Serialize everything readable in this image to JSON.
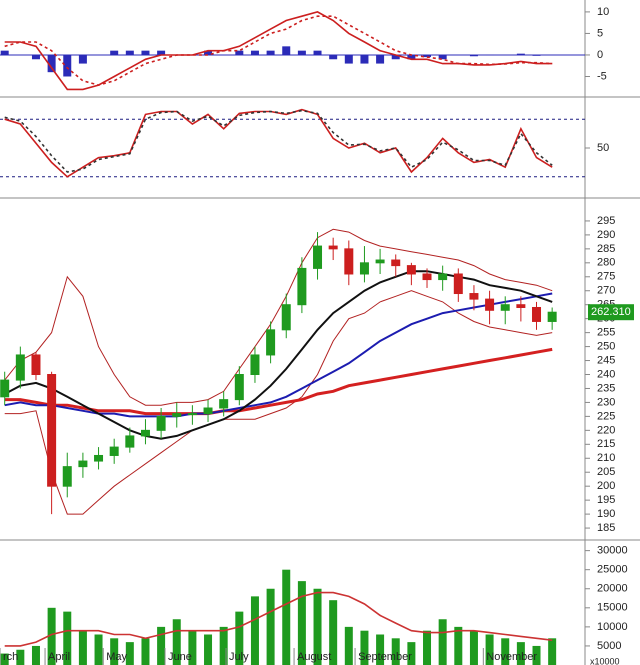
{
  "chart_data": [
    {
      "type": "macd",
      "ylim": [
        -9.3,
        12.3
      ],
      "yticks": [
        10,
        5,
        0,
        -5
      ],
      "histogram": {
        "color": "#2b2bb8",
        "values": [
          1,
          0,
          -1,
          -4,
          -5,
          -2,
          0,
          1,
          1,
          1,
          1,
          0,
          0,
          1,
          0,
          1,
          1,
          1,
          2,
          1,
          1,
          -1,
          -2,
          -2,
          -2,
          -1,
          -1,
          -0.5,
          -1,
          0,
          -0.3,
          -0.1,
          0.1,
          0.3,
          -0.2,
          0
        ]
      },
      "series": [
        {
          "color": "#cc1f1f",
          "values": [
            3,
            3,
            2,
            -3,
            -8,
            -8,
            -7,
            -5,
            -3,
            -1,
            0,
            0,
            0,
            1,
            1,
            2,
            4,
            6,
            8,
            9,
            10,
            8,
            5,
            3,
            1,
            0,
            -1,
            -1,
            -2,
            -2,
            -2.3,
            -2.3,
            -2,
            -1.5,
            -2,
            -2
          ]
        },
        {
          "color": "#cc1f1f",
          "dashed": true,
          "values": [
            2,
            3,
            3,
            1,
            -3,
            -6,
            -7,
            -6,
            -4,
            -2,
            -1,
            0,
            0,
            0,
            1,
            1,
            3,
            5,
            6,
            8,
            9,
            9,
            7,
            5,
            3,
            1,
            0,
            -0.5,
            -1,
            -2,
            -2,
            -2.2,
            -2.1,
            -1.8,
            -1.8,
            -2
          ]
        }
      ]
    },
    {
      "type": "stochastic",
      "ylim": [
        0,
        100
      ],
      "yticks": [
        50
      ],
      "levels": [
        80,
        20
      ],
      "series": [
        {
          "color": "#cc1f1f",
          "values": [
            80,
            75,
            55,
            35,
            20,
            30,
            40,
            42,
            45,
            85,
            88,
            88,
            75,
            85,
            70,
            86,
            88,
            88,
            85,
            90,
            85,
            60,
            50,
            55,
            45,
            50,
            25,
            40,
            60,
            45,
            35,
            38,
            30,
            70,
            40,
            30
          ]
        },
        {
          "color": "#333333",
          "dashed": true,
          "values": [
            82,
            78,
            62,
            42,
            25,
            28,
            38,
            41,
            44,
            80,
            87,
            88,
            78,
            83,
            73,
            84,
            87,
            88,
            86,
            89,
            86,
            66,
            53,
            54,
            47,
            50,
            30,
            38,
            56,
            48,
            37,
            37,
            32,
            65,
            45,
            32
          ]
        }
      ]
    },
    {
      "type": "candlestick",
      "ylim": [
        181.8,
        302.5
      ],
      "yticks": [
        185,
        190,
        195,
        200,
        205,
        210,
        215,
        220,
        225,
        230,
        235,
        240,
        245,
        250,
        255,
        260,
        265,
        270,
        275,
        280,
        285,
        290,
        295
      ],
      "up_color": "#1f9a1f",
      "down_color": "#cc1f1f",
      "open": [
        232,
        238,
        247,
        240,
        200,
        207,
        209,
        211,
        214,
        218,
        220,
        225,
        226,
        226,
        228,
        231,
        240,
        247,
        256,
        265,
        278,
        286,
        285,
        276,
        280,
        281,
        279,
        276,
        274,
        276,
        269,
        267,
        263,
        265,
        264,
        259
      ],
      "high": [
        241,
        250,
        248,
        241,
        212,
        212,
        214,
        217,
        221,
        224,
        228,
        230,
        229,
        231,
        234,
        243,
        250,
        259,
        269,
        282,
        291,
        289,
        288,
        286,
        285,
        283,
        280,
        278,
        279,
        278,
        272,
        270,
        268,
        268,
        266,
        264
      ],
      "low": [
        229,
        235,
        238,
        190,
        196,
        203,
        206,
        208,
        212,
        215,
        217,
        221,
        222,
        223,
        225,
        229,
        237,
        244,
        253,
        262,
        274,
        281,
        272,
        273,
        276,
        275,
        272,
        271,
        270,
        266,
        263,
        258,
        258,
        259,
        256,
        256
      ],
      "close": [
        238,
        247,
        240,
        200,
        207,
        209,
        211,
        214,
        218,
        220,
        225,
        226,
        226,
        228,
        231,
        240,
        247,
        256,
        265,
        278,
        286,
        285,
        276,
        280,
        281,
        279,
        276,
        274,
        276,
        269,
        267,
        263,
        265,
        264,
        259,
        262.31
      ],
      "last_price": {
        "value": 262.31,
        "label": "262.310"
      },
      "series": [
        {
          "color": "#b22222",
          "width": 1,
          "values": [
            238,
            245,
            248,
            255,
            275,
            268,
            250,
            240,
            232,
            229,
            229,
            230,
            230,
            231,
            234,
            242,
            250,
            258,
            268,
            280,
            289,
            292,
            291,
            288,
            286,
            285,
            284,
            283,
            282,
            281,
            279,
            276,
            274,
            273,
            272,
            270
          ]
        },
        {
          "color": "#b22222",
          "width": 1,
          "values": [
            226,
            226,
            227,
            205,
            190,
            190,
            195,
            200,
            204,
            208,
            212,
            216,
            220,
            222,
            224,
            224,
            224,
            226,
            228,
            232,
            240,
            252,
            260,
            262,
            266,
            268,
            270,
            268,
            266,
            262,
            259,
            257,
            256,
            255,
            254,
            255
          ]
        },
        {
          "color": "#d42020",
          "width": 3,
          "values": [
            231,
            231,
            230,
            229,
            229,
            228,
            227,
            227,
            227,
            226,
            226,
            226,
            226,
            226,
            227,
            227,
            228,
            229,
            230,
            231,
            233,
            234,
            236,
            237,
            238,
            239,
            240,
            241,
            242,
            243,
            244,
            245,
            246,
            247,
            248,
            249
          ]
        },
        {
          "color": "#1c1cb0",
          "width": 2,
          "values": [
            229,
            230,
            229,
            229,
            228,
            227,
            226,
            226,
            225,
            225,
            225,
            225,
            226,
            226,
            227,
            228,
            229,
            230,
            232,
            235,
            238,
            241,
            244,
            248,
            252,
            255,
            258,
            260,
            262,
            263,
            264,
            265,
            266,
            267,
            268,
            269
          ]
        },
        {
          "color": "#111111",
          "width": 2,
          "values": [
            233,
            236,
            237,
            235,
            232,
            229,
            226,
            223,
            220,
            218,
            217,
            218,
            220,
            222,
            224,
            227,
            231,
            236,
            242,
            249,
            256,
            262,
            266,
            270,
            273,
            275,
            277,
            277,
            276,
            275,
            274,
            272,
            271,
            270,
            268,
            266
          ]
        }
      ]
    },
    {
      "type": "volume",
      "ylim": [
        0,
        32000
      ],
      "yticks": [
        5000,
        10000,
        15000,
        20000,
        25000,
        30000
      ],
      "unit_label": "x10000",
      "color": "#1f9a1f",
      "values": [
        3000,
        4000,
        5000,
        15000,
        14000,
        9000,
        8000,
        7000,
        6000,
        7000,
        10000,
        12000,
        9000,
        8000,
        10000,
        14000,
        18000,
        20000,
        25000,
        22000,
        20000,
        17000,
        10000,
        9000,
        8000,
        7000,
        6000,
        9000,
        12000,
        10000,
        9000,
        8000,
        7000,
        6000,
        5000,
        7000
      ],
      "series": [
        {
          "color": "#cc3333",
          "values": [
            5000,
            5000,
            6000,
            8000,
            9000,
            9000,
            9000,
            8000,
            8000,
            7000,
            8000,
            9000,
            9000,
            9000,
            9000,
            10000,
            12000,
            14000,
            16000,
            18000,
            19000,
            19000,
            18000,
            16000,
            13000,
            11000,
            9000,
            8500,
            8500,
            9000,
            9000,
            8500,
            8000,
            7500,
            7000,
            6500
          ]
        }
      ],
      "xlim": [
        -0.3,
        37.1
      ],
      "xticks": [
        {
          "value": -0.3,
          "label": "rch"
        },
        {
          "value": 2.58,
          "label": "April"
        },
        {
          "value": 6.3,
          "label": "May"
        },
        {
          "value": 10.25,
          "label": "June"
        },
        {
          "value": 14.15,
          "label": "July"
        },
        {
          "value": 18.5,
          "label": "August"
        },
        {
          "value": 22.4,
          "label": "September"
        },
        {
          "value": 30.6,
          "label": "November"
        }
      ]
    }
  ]
}
